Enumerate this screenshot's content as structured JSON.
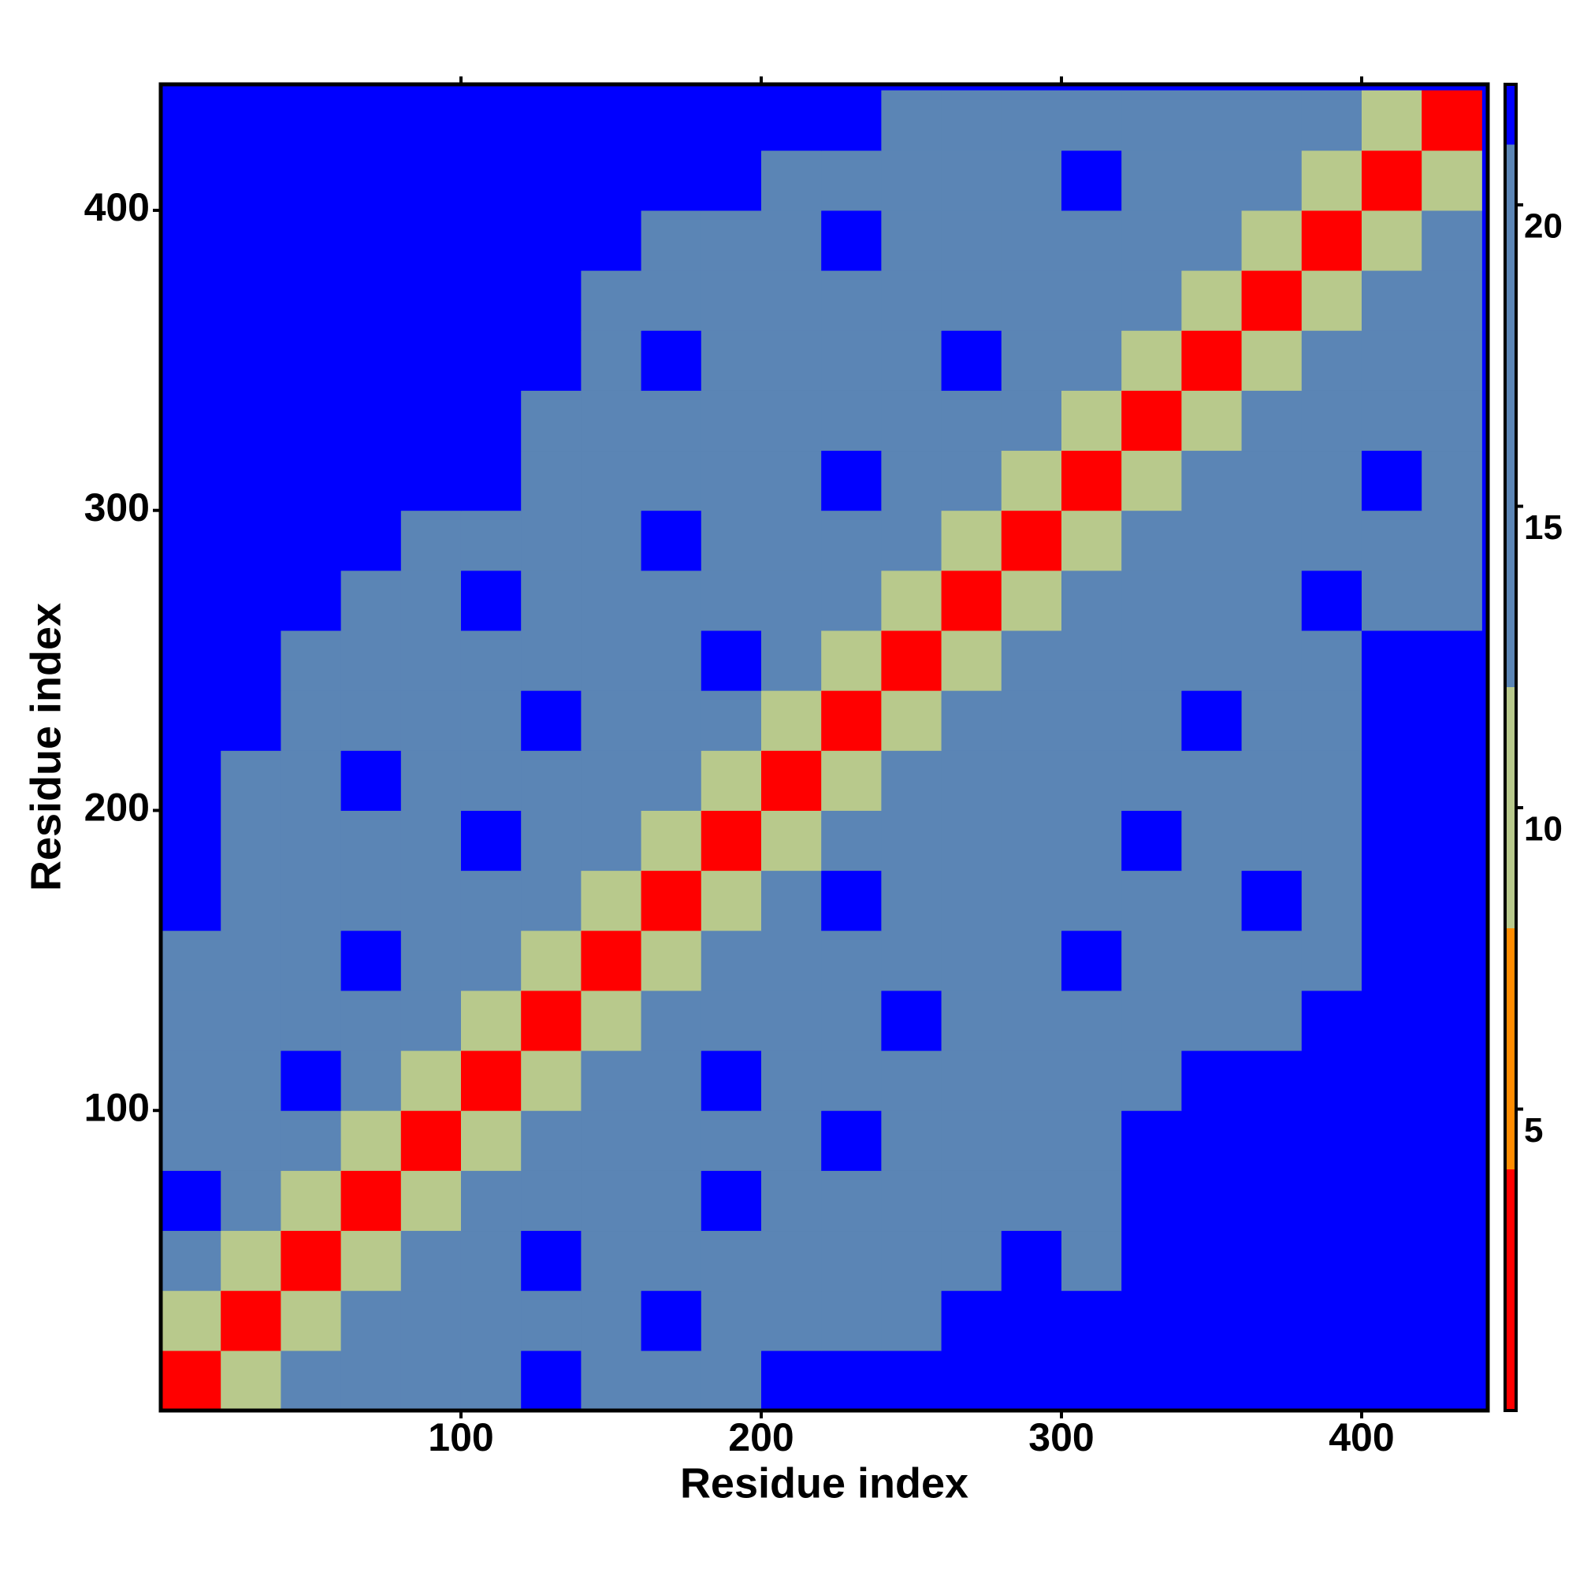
{
  "chart_data": {
    "type": "heatmap",
    "xlabel": "Residue index",
    "ylabel": "Residue index",
    "xlim": [
      0,
      442
    ],
    "ylim": [
      0,
      442
    ],
    "xticks": [
      100,
      200,
      300,
      400
    ],
    "yticks": [
      100,
      200,
      300,
      400
    ],
    "bins": [
      0,
      20,
      40,
      60,
      80,
      100,
      120,
      140,
      160,
      180,
      200,
      220,
      240,
      260,
      280,
      300,
      320,
      340,
      360,
      380,
      400,
      420,
      440
    ],
    "z": [
      [
        3,
        10,
        17,
        17,
        17,
        17,
        22,
        17,
        17,
        17,
        22,
        22,
        22,
        22,
        22,
        22,
        22,
        22,
        22,
        22,
        22,
        22
      ],
      [
        10,
        3,
        10,
        17,
        17,
        17,
        17,
        17,
        22,
        17,
        17,
        17,
        17,
        22,
        22,
        22,
        22,
        22,
        22,
        22,
        22,
        22
      ],
      [
        17,
        10,
        3,
        10,
        17,
        17,
        22,
        17,
        17,
        17,
        17,
        17,
        17,
        17,
        22,
        17,
        22,
        22,
        22,
        22,
        22,
        22
      ],
      [
        22,
        17,
        10,
        3,
        10,
        17,
        17,
        17,
        17,
        22,
        17,
        17,
        17,
        17,
        17,
        17,
        22,
        22,
        22,
        22,
        22,
        22
      ],
      [
        17,
        17,
        17,
        10,
        3,
        10,
        17,
        17,
        17,
        17,
        17,
        22,
        17,
        17,
        17,
        17,
        22,
        22,
        22,
        22,
        22,
        22
      ],
      [
        17,
        17,
        22,
        17,
        10,
        3,
        10,
        17,
        17,
        22,
        17,
        17,
        17,
        17,
        17,
        17,
        17,
        22,
        22,
        22,
        22,
        22
      ],
      [
        17,
        17,
        17,
        17,
        17,
        10,
        3,
        10,
        17,
        17,
        17,
        17,
        22,
        17,
        17,
        17,
        17,
        17,
        17,
        22,
        22,
        22
      ],
      [
        17,
        17,
        17,
        22,
        17,
        17,
        10,
        3,
        10,
        17,
        17,
        17,
        17,
        17,
        17,
        22,
        17,
        17,
        17,
        17,
        22,
        22
      ],
      [
        22,
        17,
        17,
        17,
        17,
        17,
        17,
        10,
        3,
        10,
        17,
        22,
        17,
        17,
        17,
        17,
        17,
        17,
        22,
        17,
        22,
        22
      ],
      [
        22,
        17,
        17,
        17,
        17,
        22,
        17,
        17,
        10,
        3,
        10,
        17,
        17,
        17,
        17,
        17,
        22,
        17,
        17,
        17,
        22,
        22
      ],
      [
        22,
        17,
        17,
        22,
        17,
        17,
        17,
        17,
        17,
        10,
        3,
        10,
        17,
        17,
        17,
        17,
        17,
        17,
        17,
        17,
        22,
        22
      ],
      [
        22,
        22,
        17,
        17,
        17,
        17,
        22,
        17,
        17,
        17,
        10,
        3,
        10,
        17,
        17,
        17,
        17,
        22,
        17,
        17,
        22,
        22
      ],
      [
        22,
        22,
        17,
        17,
        17,
        17,
        17,
        17,
        17,
        22,
        17,
        10,
        3,
        10,
        17,
        17,
        17,
        17,
        17,
        17,
        22,
        22
      ],
      [
        22,
        22,
        22,
        17,
        17,
        22,
        17,
        17,
        17,
        17,
        17,
        17,
        10,
        3,
        10,
        17,
        17,
        17,
        17,
        22,
        17,
        17
      ],
      [
        22,
        22,
        22,
        22,
        17,
        17,
        17,
        17,
        22,
        17,
        17,
        17,
        17,
        10,
        3,
        10,
        17,
        17,
        17,
        17,
        17,
        17
      ],
      [
        22,
        22,
        22,
        22,
        22,
        22,
        17,
        17,
        17,
        17,
        17,
        22,
        17,
        17,
        10,
        3,
        10,
        17,
        17,
        17,
        22,
        17
      ],
      [
        22,
        22,
        22,
        22,
        22,
        22,
        17,
        17,
        17,
        17,
        17,
        17,
        17,
        17,
        17,
        10,
        3,
        10,
        17,
        17,
        17,
        17
      ],
      [
        22,
        22,
        22,
        22,
        22,
        22,
        22,
        17,
        22,
        17,
        17,
        17,
        17,
        22,
        17,
        17,
        10,
        3,
        10,
        17,
        17,
        17
      ],
      [
        22,
        22,
        22,
        22,
        22,
        22,
        22,
        17,
        17,
        17,
        17,
        17,
        17,
        17,
        17,
        17,
        17,
        10,
        3,
        10,
        17,
        17
      ],
      [
        22,
        22,
        22,
        22,
        22,
        22,
        22,
        22,
        17,
        17,
        17,
        22,
        17,
        17,
        17,
        17,
        17,
        17,
        10,
        3,
        10,
        17
      ],
      [
        22,
        22,
        22,
        22,
        22,
        22,
        22,
        22,
        22,
        22,
        17,
        17,
        17,
        17,
        17,
        22,
        17,
        17,
        17,
        10,
        3,
        10
      ],
      [
        22,
        22,
        22,
        22,
        22,
        22,
        22,
        22,
        22,
        22,
        22,
        22,
        17,
        17,
        17,
        17,
        17,
        17,
        17,
        17,
        10,
        3
      ]
    ],
    "colorbar": {
      "lim": [
        0,
        22
      ],
      "ticks": [
        5,
        10,
        15,
        20
      ],
      "bounds": [
        0,
        4,
        8,
        12,
        21,
        22
      ],
      "colors": [
        "#ff0000",
        "#ff8c00",
        "#b8c98c",
        "#5b85b5",
        "#0000ff"
      ]
    }
  }
}
